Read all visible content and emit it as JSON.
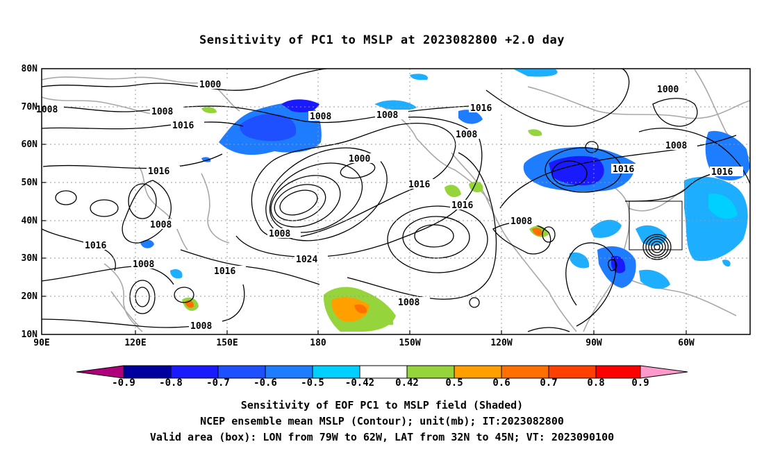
{
  "title": "Sensitivity of PC1 to MSLP at 2023082800 +2.0 day",
  "lat_labels": [
    "80N",
    "70N",
    "60N",
    "50N",
    "40N",
    "30N",
    "20N",
    "10N"
  ],
  "lon_labels": [
    "90E",
    "120E",
    "150E",
    "180",
    "150W",
    "120W",
    "90W",
    "60W"
  ],
  "contour_labels": [
    "1000",
    "1000",
    "1000",
    "1008",
    "1008",
    "1008",
    "1008",
    "1008",
    "1008",
    "1008",
    "1008",
    "1008",
    "1008",
    "1016",
    "1016",
    "1016",
    "1016",
    "1016",
    "1016",
    "1016",
    "1016",
    "1024",
    "1008",
    "1016",
    "1008"
  ],
  "colorbar": {
    "labels": [
      "-0.9",
      "-0.8",
      "-0.7",
      "-0.6",
      "-0.5",
      "-0.42",
      "0.42",
      "0.5",
      "0.6",
      "0.7",
      "0.8",
      "0.9"
    ],
    "colors": [
      "#b0007c",
      "#00009f",
      "#1a1aff",
      "#1e50ff",
      "#1e7cff",
      "#1eaeff",
      "#00d0ff",
      "#ffffff",
      "#95d53b",
      "#ffa000",
      "#ff7000",
      "#ff4000",
      "#ff0000",
      "#ff99cc"
    ]
  },
  "captions": {
    "line1": "Sensitivity of EOF PC1 to MSLP field (Shaded)",
    "line2": "NCEP ensemble mean MSLP (Contour); unit(mb); IT:2023082800",
    "line3": "Valid area (box): LON from 79W to 62W, LAT from 32N to 45N; VT: 2023090100"
  }
}
